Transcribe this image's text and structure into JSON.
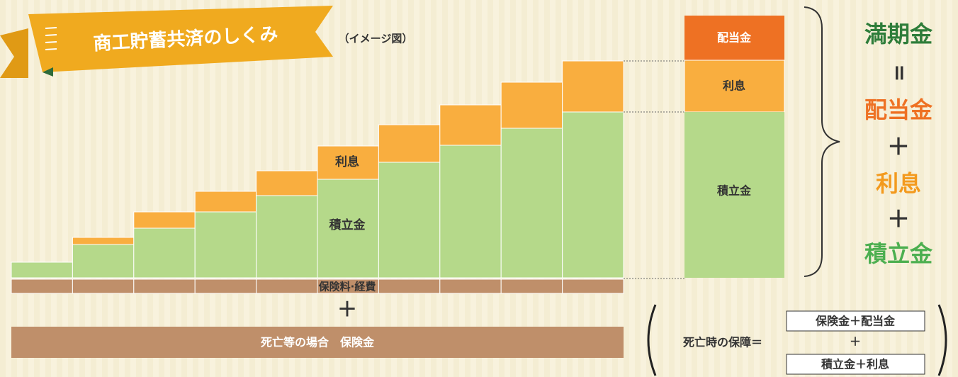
{
  "header": {
    "title": "商工貯蓄共済のしくみ",
    "subtitle": "（イメージ図）"
  },
  "steps": {
    "interest_label": "利息",
    "savings_label": "積立金",
    "premium_label": "保険料·経費",
    "plus": "＋",
    "death_benefit": "死亡等の場合　保険金"
  },
  "maturity_box": {
    "dividend": "配当金",
    "interest": "利息",
    "savings": "積立金"
  },
  "formula": {
    "maturity": "満期金",
    "equals": "=",
    "dividend": "配当金",
    "plus1": "＋",
    "interest": "利息",
    "plus2": "＋",
    "savings": "積立金"
  },
  "death_formula": {
    "label": "死亡時の保障＝",
    "top": "保険金＋配当金",
    "plus": "＋",
    "bottom": "積立金＋利息"
  }
}
